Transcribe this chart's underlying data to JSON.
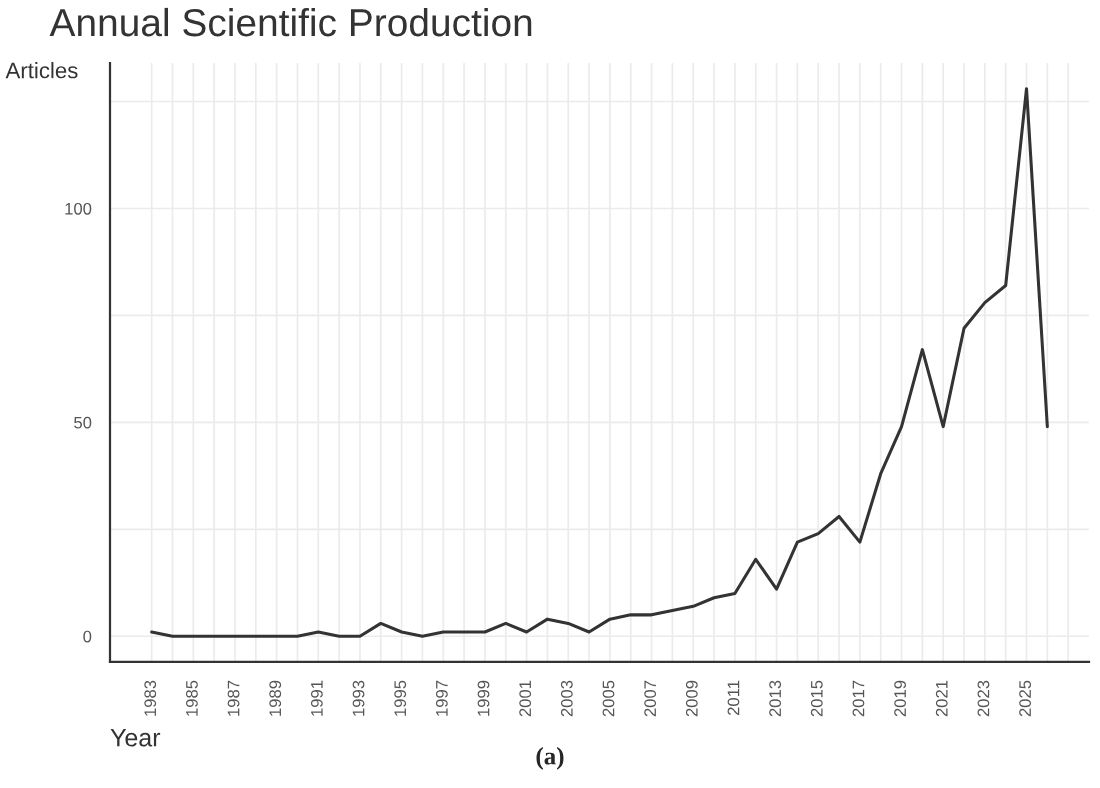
{
  "chart_data": {
    "type": "line",
    "title": "Annual Scientific Production",
    "xlabel": "Year",
    "ylabel": "Articles",
    "annotations": [
      "(a)"
    ],
    "x": [
      1983,
      1984,
      1985,
      1986,
      1987,
      1988,
      1989,
      1990,
      1991,
      1992,
      1993,
      1994,
      1995,
      1996,
      1997,
      1998,
      1999,
      2000,
      2001,
      2002,
      2003,
      2004,
      2005,
      2006,
      2007,
      2008,
      2009,
      2010,
      2011,
      2012,
      2013,
      2014,
      2015,
      2016,
      2017,
      2018,
      2019,
      2020,
      2021,
      2022,
      2023,
      2024,
      2025,
      2026
    ],
    "series": [
      {
        "color": "#333333",
        "values": [
          1,
          0,
          0,
          0,
          0,
          0,
          0,
          0,
          1,
          0,
          0,
          3,
          1,
          0,
          1,
          1,
          1,
          3,
          1,
          4,
          3,
          1,
          4,
          5,
          5,
          6,
          7,
          9,
          10,
          18,
          11,
          22,
          24,
          28,
          22,
          38,
          49,
          67,
          49,
          72,
          78,
          82,
          128,
          49
        ]
      }
    ],
    "xlim": [
      1981,
      2028
    ],
    "ylim": [
      -6,
      134
    ],
    "xticks": [
      1983,
      {
        "value": 1984,
        "label": null
      },
      1985,
      {
        "value": 1986,
        "label": null
      },
      1987,
      {
        "value": 1988,
        "label": null
      },
      1989,
      {
        "value": 1990,
        "label": null
      },
      1991,
      {
        "value": 1992,
        "label": null
      },
      1993,
      {
        "value": 1994,
        "label": null
      },
      1995,
      {
        "value": 1996,
        "label": null
      },
      1997,
      {
        "value": 1998,
        "label": null
      },
      1999,
      {
        "value": 2000,
        "label": null
      },
      2001,
      {
        "value": 2002,
        "label": null
      },
      2003,
      {
        "value": 2004,
        "label": null
      },
      2005,
      {
        "value": 2006,
        "label": null
      },
      2007,
      {
        "value": 2008,
        "label": null
      },
      2009,
      {
        "value": 2010,
        "label": null
      },
      2011,
      {
        "value": 2012,
        "label": null
      },
      2013,
      {
        "value": 2014,
        "label": null
      },
      2015,
      {
        "value": 2016,
        "label": null
      },
      2017,
      {
        "value": 2018,
        "label": null
      },
      2019,
      {
        "value": 2020,
        "label": null
      },
      2021,
      {
        "value": 2022,
        "label": null
      },
      2023,
      {
        "value": 2024,
        "label": null
      },
      2025,
      {
        "value": 2026,
        "label": null
      },
      {
        "value": 2027,
        "label": null
      }
    ],
    "yticks": [
      0,
      {
        "value": 25,
        "label": null
      },
      50,
      {
        "value": 75,
        "label": null
      },
      100,
      {
        "value": 125,
        "label": null
      }
    ],
    "grid": true,
    "marker": "none",
    "line_style": "solid"
  }
}
